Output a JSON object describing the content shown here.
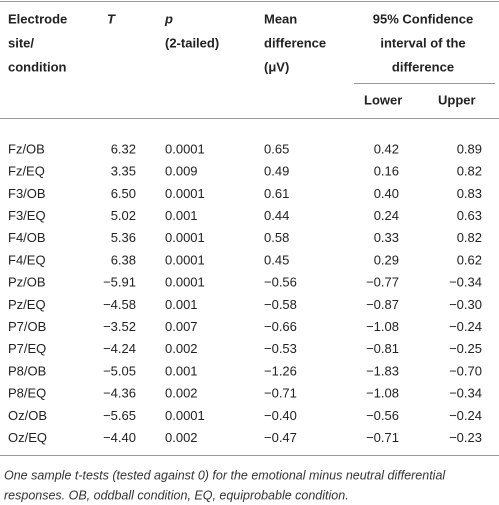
{
  "table": {
    "header": [
      [
        "Electrode",
        "site/",
        "condition"
      ],
      [
        "T"
      ],
      [
        "p",
        "(2-tailed)"
      ],
      [
        "Mean",
        "difference",
        "(μV)"
      ],
      [
        "95% Confidence",
        "interval of the",
        "difference"
      ]
    ],
    "subheader": [
      "Lower",
      "Upper"
    ],
    "rows": [
      [
        "Fz/OB",
        "6.32",
        "0.0001",
        "0.65",
        "0.42",
        "0.89"
      ],
      [
        "Fz/EQ",
        "3.35",
        "0.009",
        "0.49",
        "0.16",
        "0.82"
      ],
      [
        "F3/OB",
        "6.50",
        "0.0001",
        "0.61",
        "0.40",
        "0.83"
      ],
      [
        "F3/EQ",
        "5.02",
        "0.001",
        "0.44",
        "0.24",
        "0.63"
      ],
      [
        "F4/OB",
        "5.36",
        "0.0001",
        "0.58",
        "0.33",
        "0.82"
      ],
      [
        "F4/EQ",
        "6.38",
        "0.0001",
        "0.45",
        "0.29",
        "0.62"
      ],
      [
        "Pz/OB",
        "−5.91",
        "0.0001",
        "−0.56",
        "−0.77",
        "−0.34"
      ],
      [
        "Pz/EQ",
        "−4.58",
        "0.001",
        "−0.58",
        "−0.87",
        "−0.30"
      ],
      [
        "P7/OB",
        "−3.52",
        "0.007",
        "−0.66",
        "−1.08",
        "−0.24"
      ],
      [
        "P7/EQ",
        "−4.24",
        "0.002",
        "−0.53",
        "−0.81",
        "−0.25"
      ],
      [
        "P8/OB",
        "−5.05",
        "0.001",
        "−1.26",
        "−1.83",
        "−0.70"
      ],
      [
        "P8/EQ",
        "−4.36",
        "0.002",
        "−0.71",
        "−1.08",
        "−0.34"
      ],
      [
        "Oz/OB",
        "−5.65",
        "0.0001",
        "−0.40",
        "−0.56",
        "−0.24"
      ],
      [
        "Oz/EQ",
        "−4.40",
        "0.002",
        "−0.47",
        "−0.71",
        "−0.23"
      ]
    ],
    "note": [
      "One sample t-tests (tested against 0) for the emotional minus neutral differential",
      "responses. OB, oddball condition, EQ, equiprobable condition."
    ]
  }
}
